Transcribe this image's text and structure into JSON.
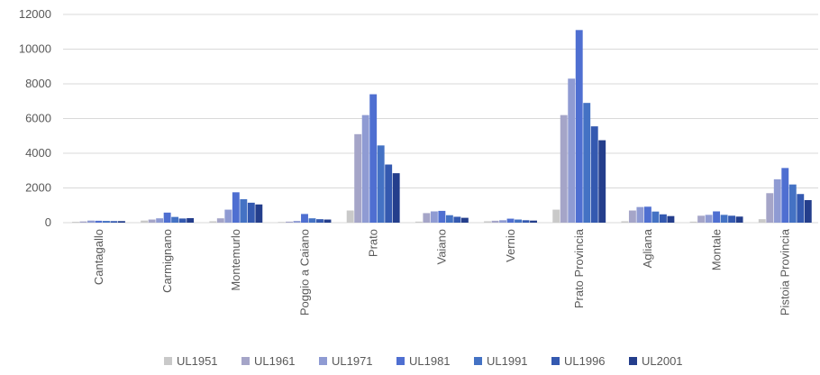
{
  "chart_data": {
    "type": "bar",
    "title": "",
    "xlabel": "",
    "ylabel": "",
    "ylim": [
      0,
      12000
    ],
    "yticks": [
      0,
      2000,
      4000,
      6000,
      8000,
      10000,
      12000
    ],
    "grid": true,
    "legend_position": "bottom",
    "categories": [
      "Cantagallo",
      "Carmignano",
      "Montemurlo",
      "Poggio a Caiano",
      "Prato",
      "Vaiano",
      "Vernio",
      "Prato Provincia",
      "Agliana",
      "Montale",
      "Pistoia Provincia"
    ],
    "series": [
      {
        "name": "UL1951",
        "color": "#c9c9c9",
        "values": [
          50,
          120,
          80,
          40,
          700,
          60,
          80,
          750,
          80,
          60,
          200
        ]
      },
      {
        "name": "UL1961",
        "color": "#a5a5c8",
        "values": [
          70,
          180,
          250,
          60,
          5100,
          550,
          110,
          6200,
          700,
          400,
          1700
        ]
      },
      {
        "name": "UL1971",
        "color": "#8f9bd3",
        "values": [
          120,
          250,
          750,
          100,
          6200,
          650,
          140,
          8300,
          900,
          450,
          2500
        ]
      },
      {
        "name": "UL1981",
        "color": "#4f6fd1",
        "values": [
          110,
          580,
          1750,
          500,
          7400,
          680,
          230,
          11100,
          920,
          650,
          3150
        ]
      },
      {
        "name": "UL1991",
        "color": "#4472c4",
        "values": [
          100,
          330,
          1350,
          250,
          4450,
          430,
          180,
          6900,
          640,
          450,
          2200
        ]
      },
      {
        "name": "UL1996",
        "color": "#3459b0",
        "values": [
          90,
          240,
          1150,
          200,
          3350,
          340,
          140,
          5550,
          480,
          400,
          1650
        ]
      },
      {
        "name": "UL2001",
        "color": "#243e8c",
        "values": [
          90,
          260,
          1050,
          180,
          2850,
          280,
          120,
          4750,
          380,
          350,
          1300
        ]
      }
    ]
  }
}
